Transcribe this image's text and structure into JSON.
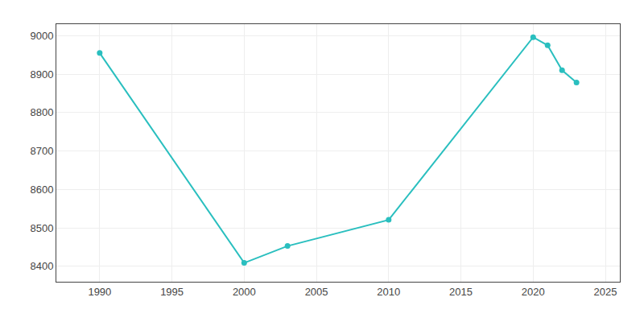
{
  "chart_data": {
    "type": "line",
    "x": [
      1990,
      2000,
      2003,
      2010,
      2020,
      2021,
      2022,
      2023
    ],
    "values": [
      8955,
      8409,
      8453,
      8521,
      8996,
      8975,
      8910,
      8878
    ],
    "color": "#2abfbf",
    "marker": "circle",
    "xlim": [
      1987,
      2026
    ],
    "ylim": [
      8360,
      9030
    ],
    "xticks": [
      1990,
      1995,
      2000,
      2005,
      2010,
      2015,
      2020,
      2025
    ],
    "yticks": [
      8400,
      8500,
      8600,
      8700,
      8800,
      8900,
      9000
    ],
    "grid": true
  }
}
